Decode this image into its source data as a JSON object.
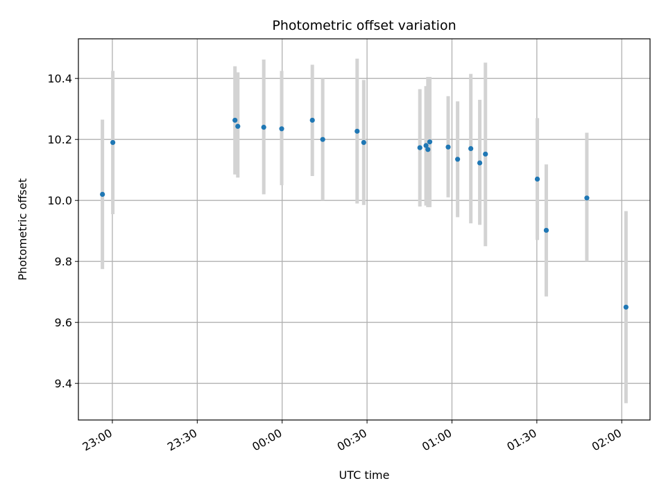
{
  "chart_data": {
    "type": "scatter",
    "title": "Photometric offset variation",
    "xlabel": "UTC time",
    "ylabel": "Photometric offset",
    "grid": true,
    "xlim": [
      "22:48",
      "02:10"
    ],
    "ylim": [
      9.28,
      10.53
    ],
    "x_ticks": [
      "23:00",
      "23:30",
      "00:00",
      "00:30",
      "01:00",
      "01:30",
      "02:00"
    ],
    "y_ticks": [
      "9.4",
      "9.6",
      "9.8",
      "10.0",
      "10.2",
      "10.4"
    ],
    "colors": {
      "point": "#1f77b4",
      "errorbar": "#d3d3d3",
      "grid": "#b0b0b0"
    },
    "points": [
      {
        "x": "22:56:30",
        "y": 10.02,
        "lo": 9.775,
        "hi": 10.265
      },
      {
        "x": "23:00:10",
        "y": 10.19,
        "lo": 9.955,
        "hi": 10.425
      },
      {
        "x": "23:43:20",
        "y": 10.263,
        "lo": 10.085,
        "hi": 10.44
      },
      {
        "x": "23:44:20",
        "y": 10.243,
        "lo": 10.075,
        "hi": 10.42
      },
      {
        "x": "23:53:30",
        "y": 10.24,
        "lo": 10.02,
        "hi": 10.462
      },
      {
        "x": "23:59:50",
        "y": 10.235,
        "lo": 10.05,
        "hi": 10.425
      },
      {
        "x": "00:10:40",
        "y": 10.263,
        "lo": 10.08,
        "hi": 10.445
      },
      {
        "x": "00:14:20",
        "y": 10.2,
        "lo": 10.0,
        "hi": 10.4
      },
      {
        "x": "00:26:30",
        "y": 10.227,
        "lo": 9.99,
        "hi": 10.465
      },
      {
        "x": "00:28:50",
        "y": 10.19,
        "lo": 9.985,
        "hi": 10.395
      },
      {
        "x": "00:48:40",
        "y": 10.173,
        "lo": 9.98,
        "hi": 10.365
      },
      {
        "x": "00:50:50",
        "y": 10.18,
        "lo": 9.983,
        "hi": 10.375
      },
      {
        "x": "00:51:30",
        "y": 10.167,
        "lo": 9.978,
        "hi": 10.405
      },
      {
        "x": "00:52:10",
        "y": 10.192,
        "lo": 9.978,
        "hi": 10.405
      },
      {
        "x": "00:58:40",
        "y": 10.175,
        "lo": 10.01,
        "hi": 10.342
      },
      {
        "x": "01:02:00",
        "y": 10.135,
        "lo": 9.945,
        "hi": 10.325
      },
      {
        "x": "01:06:40",
        "y": 10.17,
        "lo": 9.925,
        "hi": 10.415
      },
      {
        "x": "01:09:50",
        "y": 10.123,
        "lo": 9.92,
        "hi": 10.33
      },
      {
        "x": "01:11:50",
        "y": 10.152,
        "lo": 9.85,
        "hi": 10.452
      },
      {
        "x": "01:30:10",
        "y": 10.07,
        "lo": 9.87,
        "hi": 10.27
      },
      {
        "x": "01:33:20",
        "y": 9.902,
        "lo": 9.685,
        "hi": 10.118
      },
      {
        "x": "01:47:40",
        "y": 10.008,
        "lo": 9.8,
        "hi": 10.222
      },
      {
        "x": "02:01:30",
        "y": 9.65,
        "lo": 9.335,
        "hi": 9.965
      }
    ]
  }
}
